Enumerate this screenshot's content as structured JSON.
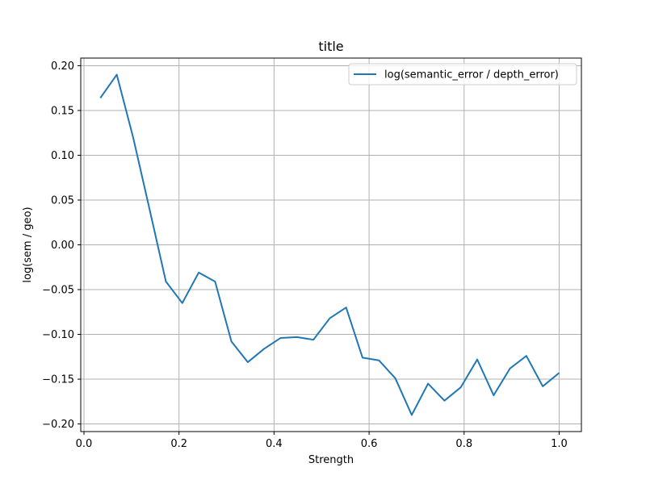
{
  "chart_data": {
    "type": "line",
    "title": "title",
    "xlabel": "Strength",
    "ylabel": "log(sem / geo)",
    "xlim": [
      -0.0068,
      1.0468
    ],
    "ylim": [
      -0.2085,
      0.2085
    ],
    "x_ticks": [
      0.0,
      0.2,
      0.4,
      0.6,
      0.8,
      1.0
    ],
    "x_tick_labels": [
      "0.0",
      "0.2",
      "0.4",
      "0.6",
      "0.8",
      "1.0"
    ],
    "y_ticks": [
      0.2,
      0.15,
      0.1,
      0.05,
      0.0,
      -0.05,
      -0.1,
      -0.15,
      -0.2
    ],
    "y_tick_labels": [
      "0.20",
      "0.15",
      "0.10",
      "0.05",
      "0.00",
      "−0.05",
      "−0.10",
      "−0.15",
      "−0.20"
    ],
    "grid": true,
    "legend_position": "top-right",
    "series": [
      {
        "name": "log(semantic_error / depth_error)",
        "color": "#1f77b4",
        "x": [
          0.0345,
          0.069,
          0.1034,
          0.1379,
          0.1724,
          0.2069,
          0.2414,
          0.2759,
          0.3103,
          0.3448,
          0.3793,
          0.4138,
          0.4483,
          0.4828,
          0.5172,
          0.5517,
          0.5862,
          0.6207,
          0.6552,
          0.6897,
          0.7241,
          0.7586,
          0.7931,
          0.8276,
          0.8621,
          0.8966,
          0.931,
          0.9655,
          1.0
        ],
        "values": [
          0.164,
          0.19,
          0.12,
          0.04,
          -0.041,
          -0.065,
          -0.031,
          -0.041,
          -0.108,
          -0.131,
          -0.116,
          -0.104,
          -0.103,
          -0.106,
          -0.082,
          -0.07,
          -0.126,
          -0.129,
          -0.149,
          -0.19,
          -0.155,
          -0.174,
          -0.159,
          -0.128,
          -0.168,
          -0.138,
          -0.124,
          -0.158,
          -0.143
        ]
      }
    ]
  }
}
